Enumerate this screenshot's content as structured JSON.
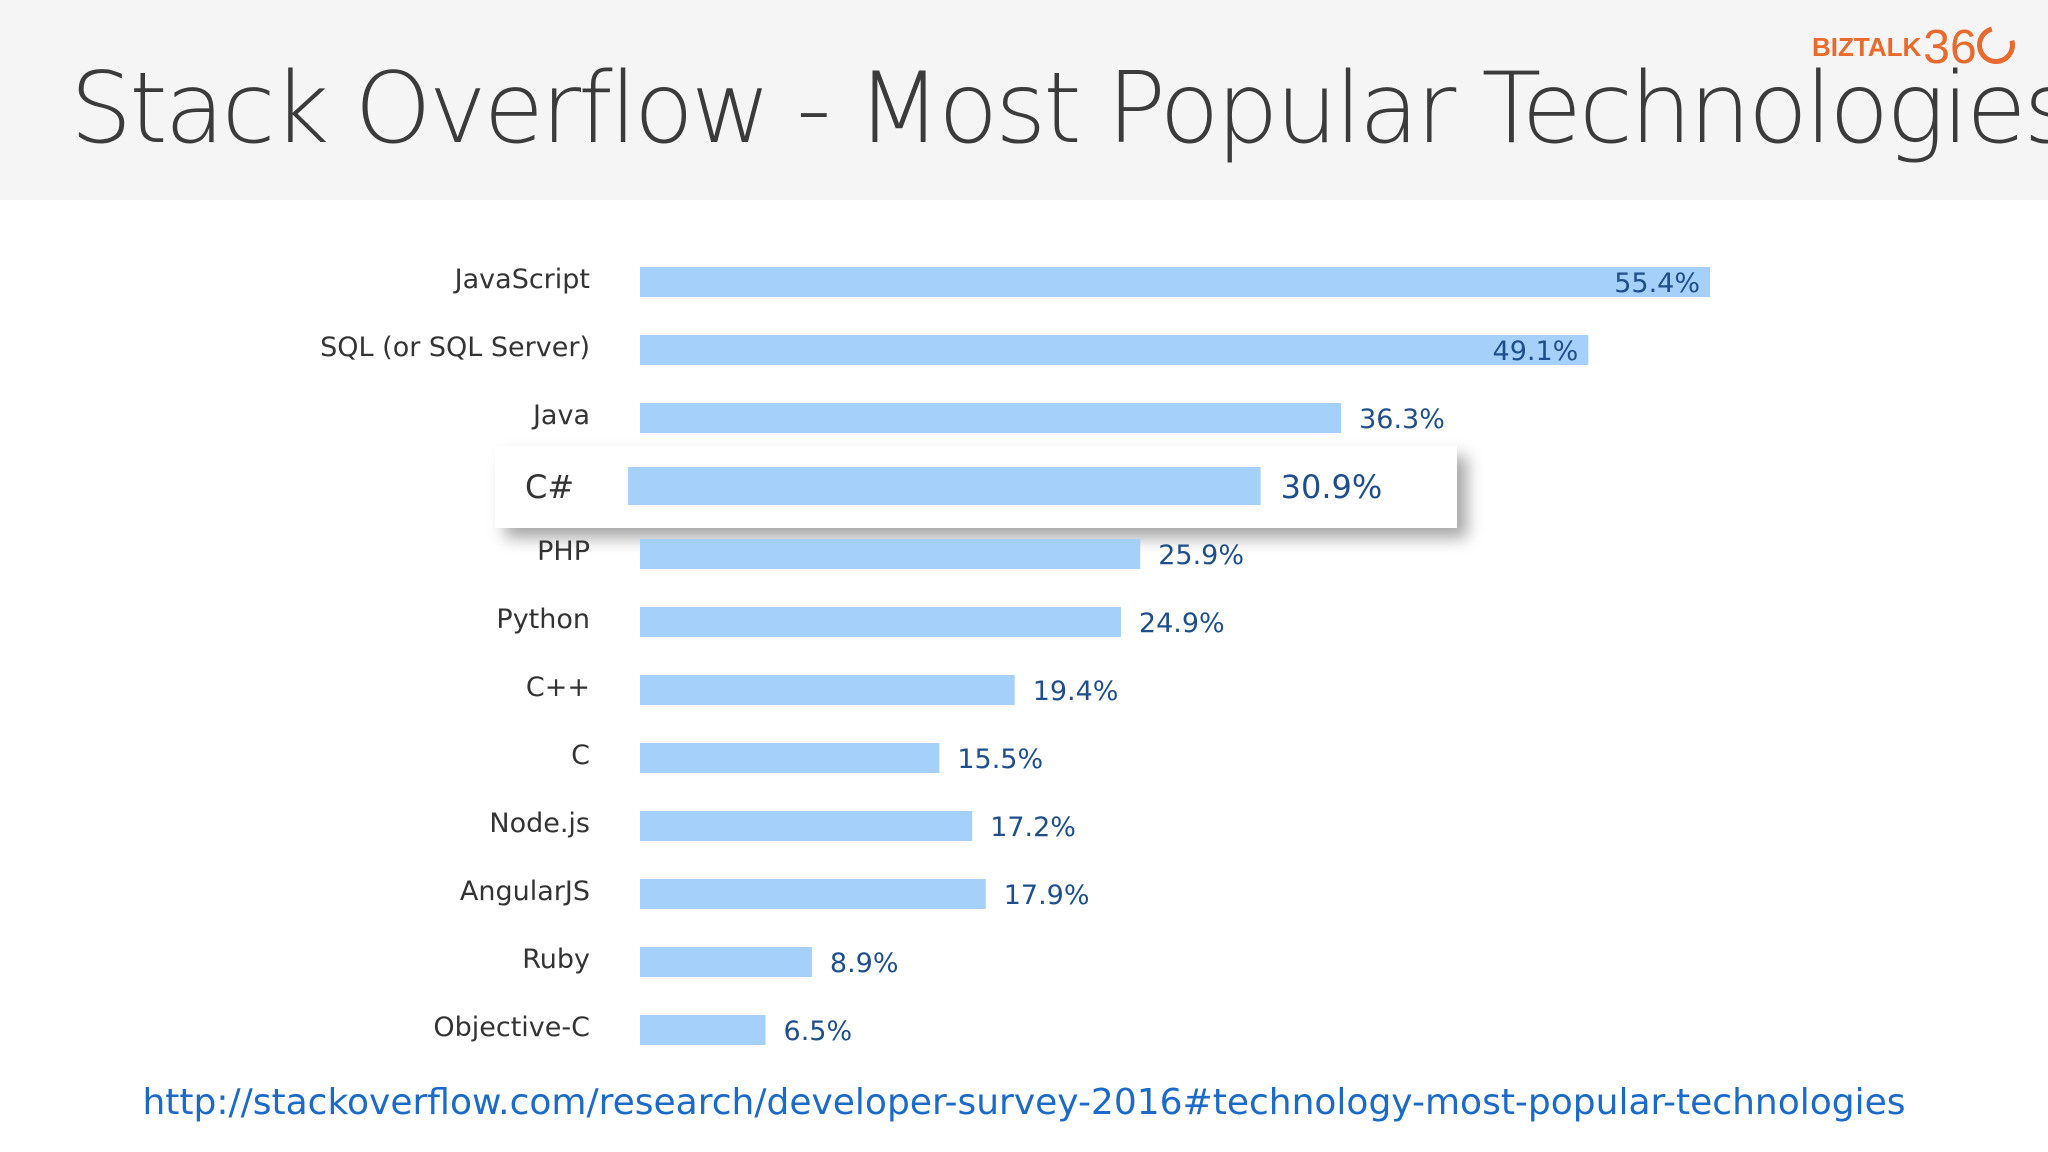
{
  "header": {
    "title": "Stack Overflow - Most Popular Technologies",
    "logo_text": "BIZTALK",
    "logo_number": "36"
  },
  "chart_data": {
    "type": "bar",
    "orientation": "horizontal",
    "categories": [
      "JavaScript",
      "SQL (or SQL Server)",
      "Java",
      "C#",
      "PHP",
      "Python",
      "C++",
      "C",
      "Node.js",
      "AngularJS",
      "Ruby",
      "Objective-C"
    ],
    "values": [
      55.4,
      49.1,
      36.3,
      30.9,
      25.9,
      24.9,
      19.4,
      15.5,
      17.2,
      17.9,
      8.9,
      6.5
    ],
    "value_labels": [
      "55.4%",
      "49.1%",
      "36.3%",
      "30.9%",
      "25.9%",
      "24.9%",
      "19.4%",
      "15.5%",
      "17.2%",
      "17.9%",
      "8.9%",
      "6.5%"
    ],
    "highlighted": "C#",
    "bar_color": "#a4d0fa",
    "xlim": [
      0,
      55.4
    ],
    "grid": false
  },
  "footer": {
    "source_url": "http://stackoverflow.com/research/developer-survey-2016#technology-most-popular-technologies"
  }
}
